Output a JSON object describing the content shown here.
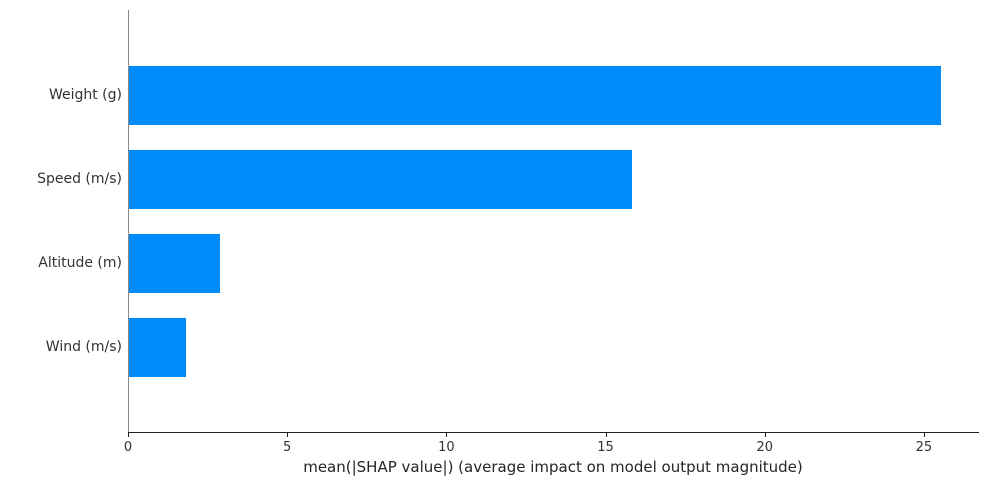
{
  "chart_data": {
    "type": "bar",
    "orientation": "horizontal",
    "title": "",
    "categories": [
      "Weight (g)",
      "Speed (m/s)",
      "Altitude (m)",
      "Wind (m/s)"
    ],
    "values": [
      25.5,
      15.8,
      2.85,
      1.8
    ],
    "xlabel": "mean(|SHAP value|) (average impact on model output magnitude)",
    "ylabel": "",
    "xticks": [
      0,
      5,
      10,
      15,
      20,
      25
    ],
    "xtick_labels": [
      "0",
      "5",
      "10",
      "15",
      "20",
      "25"
    ],
    "xlim": [
      0,
      26.7
    ],
    "grid": false,
    "legend_position": "none",
    "bar_color": "#008bfb",
    "text_color": "#333333",
    "axis_color": "#262626"
  }
}
